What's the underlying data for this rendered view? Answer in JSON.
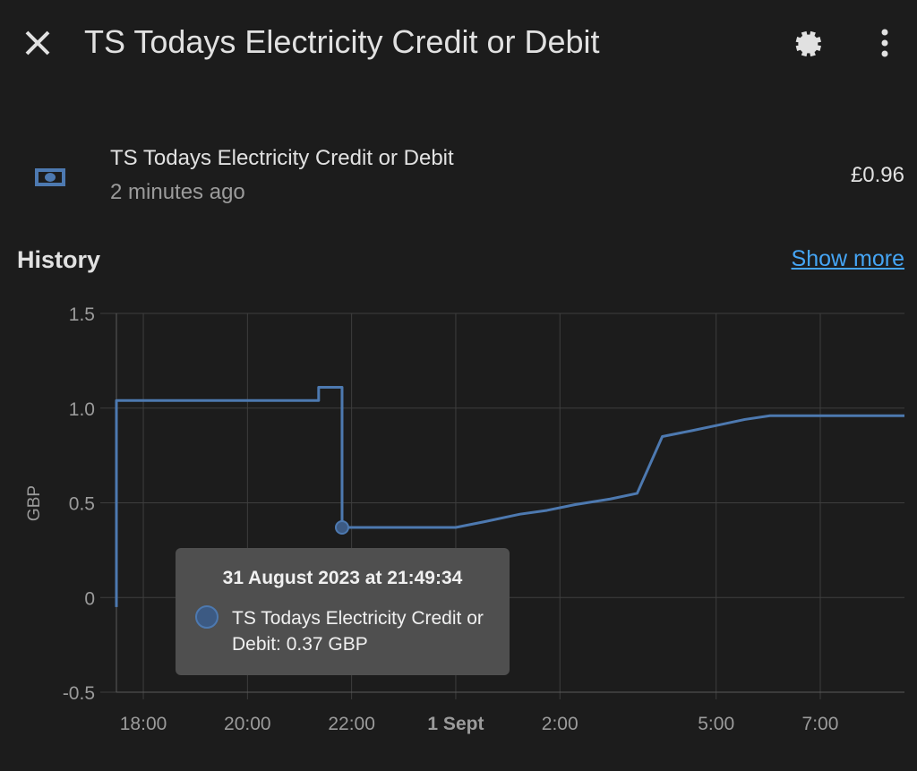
{
  "header": {
    "title": "TS Todays Electricity Credit or Debit",
    "close_icon": "close-icon",
    "settings_icon": "gear-icon",
    "menu_icon": "more-vertical-icon"
  },
  "entity": {
    "icon": "cash-icon",
    "name": "TS Todays Electricity Credit or Debit",
    "last_changed": "2 minutes ago",
    "state": "£0.96"
  },
  "history": {
    "title": "History",
    "show_more": "Show more"
  },
  "tooltip": {
    "title": "31 August 2023 at 21:49:34",
    "label": "TS Todays Electricity Credit or Debit: 0.37 GBP"
  },
  "colors": {
    "line": "#4d79b0",
    "accent": "#45a5f5",
    "background": "#1c1c1c"
  },
  "chart_data": {
    "type": "line",
    "ylabel": "GBP",
    "ylim": [
      -0.5,
      1.5
    ],
    "yticks": [
      "1.5",
      "1.0",
      "0.5",
      "0",
      "-0.5"
    ],
    "ytick_values": [
      1.5,
      1.0,
      0.5,
      0,
      -0.5
    ],
    "xticks": [
      {
        "label": "18:00",
        "time": "2023-08-31T18:00"
      },
      {
        "label": "20:00",
        "time": "2023-08-31T20:00"
      },
      {
        "label": "22:00",
        "time": "2023-08-31T22:00"
      },
      {
        "label": "1 Sept",
        "time": "2023-09-01T00:00",
        "bold": true
      },
      {
        "label": "2:00",
        "time": "2023-09-01T02:00"
      },
      {
        "label": "5:00",
        "time": "2023-09-01T05:00"
      },
      {
        "label": "7:00",
        "time": "2023-09-01T07:00"
      }
    ],
    "xlim": [
      "2023-08-31T17:29",
      "2023-09-01T08:37"
    ],
    "grid": true,
    "series": [
      {
        "points": [
          [
            "2023-08-31T17:29",
            -0.05
          ],
          [
            "2023-08-31T17:29",
            1.04
          ],
          [
            "2023-08-31T21:22",
            1.04
          ],
          [
            "2023-08-31T21:22",
            1.11
          ],
          [
            "2023-08-31T21:49",
            1.11
          ],
          [
            "2023-08-31T21:49",
            0.37
          ],
          [
            "2023-09-01T00:00",
            0.37
          ],
          [
            "2023-09-01T00:33",
            0.4
          ],
          [
            "2023-09-01T01:14",
            0.44
          ],
          [
            "2023-09-01T01:45",
            0.46
          ],
          [
            "2023-09-01T02:17",
            0.49
          ],
          [
            "2023-09-01T02:58",
            0.52
          ],
          [
            "2023-09-01T03:29",
            0.55
          ],
          [
            "2023-09-01T03:58",
            0.85
          ],
          [
            "2023-09-01T04:31",
            0.88
          ],
          [
            "2023-09-01T05:02",
            0.91
          ],
          [
            "2023-09-01T05:33",
            0.94
          ],
          [
            "2023-09-01T06:02",
            0.96
          ],
          [
            "2023-09-01T08:37",
            0.96
          ]
        ]
      }
    ],
    "highlight": {
      "time": "2023-08-31T21:49",
      "value": 0.37
    }
  }
}
